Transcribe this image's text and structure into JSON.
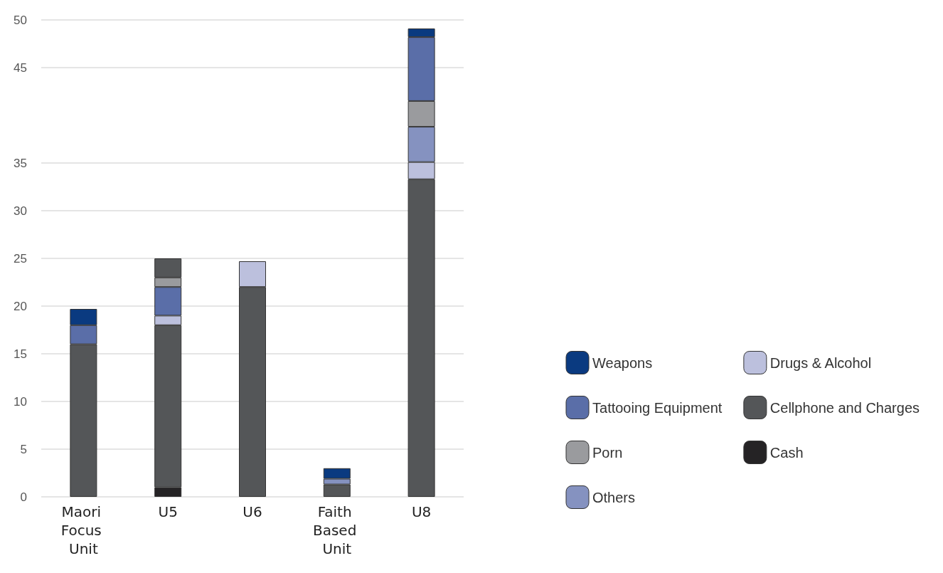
{
  "chart_data": {
    "type": "bar",
    "stacked": true,
    "categories": [
      "Maori Focus Unit",
      "U5",
      "U6",
      "Faith Based Unit",
      "U8"
    ],
    "series": [
      {
        "name": "Cash",
        "color": "#252325",
        "values": [
          null,
          1,
          null,
          null,
          null
        ]
      },
      {
        "name": "Cellphone and Charges",
        "color": "#545658",
        "values": [
          16,
          17,
          22,
          1.3,
          33.3
        ]
      },
      {
        "name": "Drugs & Alcohol",
        "color": "#bcc0dd",
        "values": [
          null,
          1,
          2.7,
          null,
          1.8
        ]
      },
      {
        "name": "Others",
        "color": "#8592c0",
        "values": [
          null,
          null,
          null,
          0.6,
          3.7
        ]
      },
      {
        "name": "Porn",
        "color": "#9a9b9e",
        "values": [
          null,
          null,
          null,
          null,
          2.7
        ]
      },
      {
        "name": "Tattooing Equipment",
        "color": "#5a6ea8",
        "values": [
          2,
          3,
          null,
          null,
          6.7
        ]
      },
      {
        "color": "#9a9b9e",
        "values": [
          null,
          1,
          null,
          null,
          null
        ]
      },
      {
        "name": "Weapons",
        "color": "#0a3a80",
        "values": [
          1.7,
          null,
          null,
          1.1,
          0.9
        ]
      },
      {
        "color": "#545658",
        "values": [
          null,
          2,
          null,
          null,
          null
        ]
      }
    ],
    "ylim": [
      0,
      50
    ],
    "yticks": [
      0,
      5,
      10,
      15,
      20,
      25,
      30,
      35,
      45,
      50
    ],
    "grid": "y",
    "legend": "right"
  }
}
